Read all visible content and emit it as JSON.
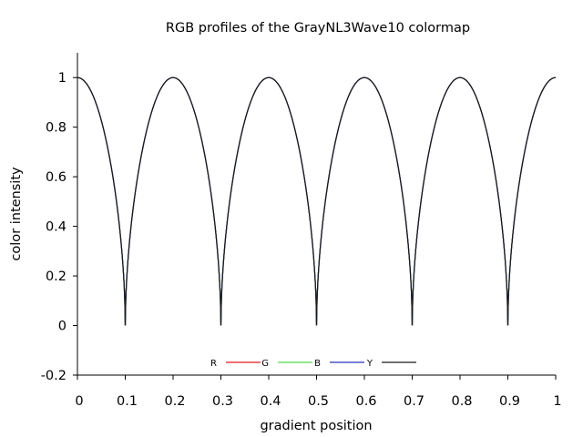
{
  "chart_data": {
    "type": "line",
    "title": "RGB profiles of the GrayNL3Wave10 colormap",
    "xlabel": "gradient position",
    "ylabel": "color intensity",
    "xlim": [
      0,
      1
    ],
    "ylim": [
      -0.2,
      1.1
    ],
    "xticks": [
      0,
      0.1,
      0.2,
      0.3,
      0.4,
      0.5,
      0.6,
      0.7,
      0.8,
      0.9,
      1
    ],
    "xtick_labels": [
      "0",
      "0.1",
      "0.2",
      "0.3",
      "0.4",
      "0.5",
      "0.6",
      "0.7",
      "0.8",
      "0.9",
      "1"
    ],
    "yticks": [
      -0.2,
      0,
      0.2,
      0.4,
      0.6,
      0.8,
      1
    ],
    "ytick_labels": [
      "-0.2",
      "0",
      "0.2",
      "0.4",
      "0.6",
      "0.8",
      "1"
    ],
    "grid": false,
    "legend_position": "bottom-center",
    "waves": 10,
    "note_values": "All four series coincide: intensity is 1 at x = 0, 0.2, 0.4, 0.6, 0.8, 1 and 0 at x = 0.1, 0.3, 0.5, 0.7, 0.9, with rounded maxima and sharp cusp minima.",
    "x": [
      0,
      0.02,
      0.04,
      0.06,
      0.08,
      0.1,
      0.12,
      0.14,
      0.16,
      0.18,
      0.2,
      0.22,
      0.24,
      0.26,
      0.28,
      0.3,
      0.32,
      0.34,
      0.36,
      0.38,
      0.4,
      0.42,
      0.44,
      0.46,
      0.48,
      0.5,
      0.52,
      0.54,
      0.56,
      0.58,
      0.6,
      0.62,
      0.64,
      0.66,
      0.68,
      0.7,
      0.72,
      0.74,
      0.76,
      0.78,
      0.8,
      0.82,
      0.84,
      0.86,
      0.88,
      0.9,
      0.92,
      0.94,
      0.96,
      0.98,
      1
    ],
    "series": [
      {
        "name": "R",
        "color": "#e41a1c",
        "values": [
          1,
          0.97,
          0.87,
          0.69,
          0.43,
          0,
          0.43,
          0.69,
          0.87,
          0.97,
          1,
          0.97,
          0.87,
          0.69,
          0.43,
          0,
          0.43,
          0.69,
          0.87,
          0.97,
          1,
          0.97,
          0.87,
          0.69,
          0.43,
          0,
          0.43,
          0.69,
          0.87,
          0.97,
          1,
          0.97,
          0.87,
          0.69,
          0.43,
          0,
          0.43,
          0.69,
          0.87,
          0.97,
          1,
          0.97,
          0.87,
          0.69,
          0.43,
          0,
          0.43,
          0.69,
          0.87,
          0.97,
          1
        ]
      },
      {
        "name": "G",
        "color": "#4ddc4a",
        "values": [
          1,
          0.97,
          0.87,
          0.69,
          0.43,
          0,
          0.43,
          0.69,
          0.87,
          0.97,
          1,
          0.97,
          0.87,
          0.69,
          0.43,
          0,
          0.43,
          0.69,
          0.87,
          0.97,
          1,
          0.97,
          0.87,
          0.69,
          0.43,
          0,
          0.43,
          0.69,
          0.87,
          0.97,
          1,
          0.97,
          0.87,
          0.69,
          0.43,
          0,
          0.43,
          0.69,
          0.87,
          0.97,
          1,
          0.97,
          0.87,
          0.69,
          0.43,
          0,
          0.43,
          0.69,
          0.87,
          0.97,
          1
        ]
      },
      {
        "name": "B",
        "color": "#2633c0",
        "values": [
          1,
          0.97,
          0.87,
          0.69,
          0.43,
          0,
          0.43,
          0.69,
          0.87,
          0.97,
          1,
          0.97,
          0.87,
          0.69,
          0.43,
          0,
          0.43,
          0.69,
          0.87,
          0.97,
          1,
          0.97,
          0.87,
          0.69,
          0.43,
          0,
          0.43,
          0.69,
          0.87,
          0.97,
          1,
          0.97,
          0.87,
          0.69,
          0.43,
          0,
          0.43,
          0.69,
          0.87,
          0.97,
          1,
          0.97,
          0.87,
          0.69,
          0.43,
          0,
          0.43,
          0.69,
          0.87,
          0.97,
          1
        ]
      },
      {
        "name": "Y",
        "color": "#1a1a1a",
        "values": [
          1,
          0.97,
          0.87,
          0.69,
          0.43,
          0,
          0.43,
          0.69,
          0.87,
          0.97,
          1,
          0.97,
          0.87,
          0.69,
          0.43,
          0,
          0.43,
          0.69,
          0.87,
          0.97,
          1,
          0.97,
          0.87,
          0.69,
          0.43,
          0,
          0.43,
          0.69,
          0.87,
          0.97,
          1,
          0.97,
          0.87,
          0.69,
          0.43,
          0,
          0.43,
          0.69,
          0.87,
          0.97,
          1,
          0.97,
          0.87,
          0.69,
          0.43,
          0,
          0.43,
          0.69,
          0.87,
          0.97,
          1
        ]
      }
    ]
  }
}
